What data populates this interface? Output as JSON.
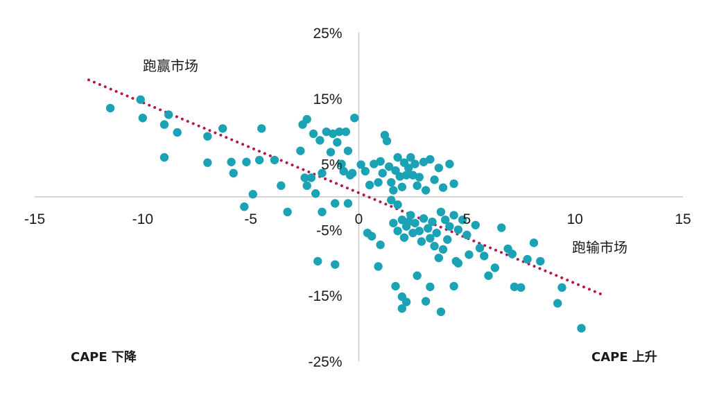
{
  "chart_data": {
    "type": "scatter",
    "title": "",
    "xlabel": "",
    "ylabel": "",
    "xlim": [
      -15,
      15
    ],
    "ylim": [
      -25,
      25
    ],
    "x_ticks": [
      "-15",
      "-10",
      "-5",
      "0",
      "5",
      "10",
      "15"
    ],
    "y_ticks": [
      "25%",
      "15%",
      "5%",
      "-5%",
      "-15%",
      "-25%"
    ],
    "grid": false,
    "colors": {
      "points": "#1BA3B5",
      "trend": "#B5174F",
      "axis": "#c8c8c8"
    },
    "annotations": {
      "top_left": "跑赢市场",
      "right": "跑输市场",
      "bottom_left": "CAPE 下降",
      "bottom_right": "CAPE 上升"
    },
    "trendline": {
      "x": [
        -12.5,
        11.2
      ],
      "y": [
        17.8,
        -14.8
      ],
      "style": "dotted"
    },
    "series": [
      {
        "points": [
          [
            -11.5,
            13.5
          ],
          [
            -10.1,
            14.8
          ],
          [
            -10.0,
            12.0
          ],
          [
            -9.0,
            11.0
          ],
          [
            -8.8,
            12.5
          ],
          [
            -8.4,
            9.8
          ],
          [
            -9.0,
            6.0
          ],
          [
            -7.0,
            9.2
          ],
          [
            -6.3,
            10.4
          ],
          [
            -7.0,
            5.2
          ],
          [
            -5.9,
            5.3
          ],
          [
            -5.8,
            3.6
          ],
          [
            -5.2,
            5.3
          ],
          [
            -4.9,
            0.4
          ],
          [
            -5.3,
            -1.5
          ],
          [
            -4.6,
            5.6
          ],
          [
            -4.5,
            10.4
          ],
          [
            -3.9,
            5.6
          ],
          [
            -3.6,
            1.7
          ],
          [
            -3.3,
            -2.3
          ],
          [
            -2.7,
            7.0
          ],
          [
            -2.6,
            11.0
          ],
          [
            -2.4,
            11.8
          ],
          [
            -2.5,
            2.9
          ],
          [
            -2.4,
            1.7
          ],
          [
            -2.2,
            2.9
          ],
          [
            -2.1,
            9.6
          ],
          [
            -2.0,
            0.5
          ],
          [
            -1.8,
            8.6
          ],
          [
            -1.7,
            3.6
          ],
          [
            -1.5,
            9.9
          ],
          [
            -1.3,
            6.8
          ],
          [
            -1.2,
            9.6
          ],
          [
            -1.0,
            8.3
          ],
          [
            -0.9,
            9.9
          ],
          [
            -0.8,
            5.0
          ],
          [
            -0.7,
            3.9
          ],
          [
            -0.6,
            9.9
          ],
          [
            -0.5,
            7.0
          ],
          [
            -0.4,
            3.3
          ],
          [
            -0.5,
            -1.0
          ],
          [
            -1.7,
            -2.3
          ],
          [
            -1.1,
            -1.0
          ],
          [
            -0.2,
            12.0
          ],
          [
            -0.3,
            3.6
          ],
          [
            0.1,
            4.9
          ],
          [
            0.3,
            3.9
          ],
          [
            0.5,
            1.8
          ],
          [
            0.7,
            5.0
          ],
          [
            0.9,
            2.2
          ],
          [
            1.0,
            5.4
          ],
          [
            1.1,
            3.6
          ],
          [
            1.2,
            9.4
          ],
          [
            1.3,
            8.5
          ],
          [
            1.4,
            4.6
          ],
          [
            1.5,
            2.2
          ],
          [
            1.6,
            1.0
          ],
          [
            1.7,
            4.0
          ],
          [
            1.8,
            6.0
          ],
          [
            1.9,
            3.1
          ],
          [
            2.0,
            1.5
          ],
          [
            2.1,
            5.2
          ],
          [
            2.2,
            3.3
          ],
          [
            2.3,
            4.4
          ],
          [
            2.4,
            6.0
          ],
          [
            2.5,
            3.3
          ],
          [
            2.6,
            5.0
          ],
          [
            2.7,
            1.7
          ],
          [
            2.8,
            3.0
          ],
          [
            3.0,
            5.3
          ],
          [
            3.1,
            1.0
          ],
          [
            3.3,
            5.7
          ],
          [
            3.5,
            2.6
          ],
          [
            3.7,
            4.4
          ],
          [
            3.9,
            1.4
          ],
          [
            4.2,
            5.0
          ],
          [
            4.4,
            2.0
          ],
          [
            1.5,
            -0.5
          ],
          [
            1.8,
            -1.2
          ],
          [
            2.0,
            -3.5
          ],
          [
            2.2,
            -4.5
          ],
          [
            2.4,
            -2.8
          ],
          [
            2.6,
            -4.0
          ],
          [
            2.8,
            -5.2
          ],
          [
            3.0,
            -3.3
          ],
          [
            3.2,
            -4.8
          ],
          [
            3.4,
            -3.8
          ],
          [
            3.6,
            -5.5
          ],
          [
            3.8,
            -2.3
          ],
          [
            4.0,
            -3.5
          ],
          [
            4.2,
            -4.5
          ],
          [
            4.4,
            -2.8
          ],
          [
            4.6,
            -5.0
          ],
          [
            4.8,
            -3.5
          ],
          [
            5.0,
            -5.8
          ],
          [
            1.6,
            -4.0
          ],
          [
            1.8,
            -5.2
          ],
          [
            2.1,
            -6.2
          ],
          [
            2.3,
            -3.8
          ],
          [
            2.5,
            -5.5
          ],
          [
            2.9,
            -6.8
          ],
          [
            3.3,
            -6.3
          ],
          [
            3.5,
            -7.5
          ],
          [
            3.9,
            -8.0
          ],
          [
            4.1,
            -6.5
          ],
          [
            4.5,
            -9.8
          ],
          [
            5.1,
            -8.8
          ],
          [
            5.4,
            -4.3
          ],
          [
            5.6,
            -7.8
          ],
          [
            5.8,
            -9.0
          ],
          [
            6.0,
            -12.0
          ],
          [
            6.3,
            -10.8
          ],
          [
            6.6,
            -4.7
          ],
          [
            6.9,
            -7.9
          ],
          [
            7.1,
            -8.7
          ],
          [
            7.2,
            -13.7
          ],
          [
            7.5,
            -13.8
          ],
          [
            7.8,
            -9.5
          ],
          [
            8.1,
            -7.0
          ],
          [
            8.4,
            -9.8
          ],
          [
            1.0,
            -7.3
          ],
          [
            0.6,
            -6.0
          ],
          [
            0.4,
            -5.5
          ],
          [
            0.9,
            -10.6
          ],
          [
            1.7,
            -13.6
          ],
          [
            2.0,
            -15.2
          ],
          [
            2.2,
            -16.0
          ],
          [
            2.0,
            -17.0
          ],
          [
            2.7,
            -12.0
          ],
          [
            3.1,
            -15.9
          ],
          [
            3.3,
            -13.7
          ],
          [
            3.7,
            -9.3
          ],
          [
            3.8,
            -17.5
          ],
          [
            4.4,
            -13.6
          ],
          [
            9.2,
            -16.2
          ],
          [
            9.4,
            -13.8
          ],
          [
            10.3,
            -20.0
          ],
          [
            -1.9,
            -9.8
          ],
          [
            -1.1,
            -10.3
          ],
          [
            4.6,
            -10.1
          ]
        ]
      }
    ]
  }
}
